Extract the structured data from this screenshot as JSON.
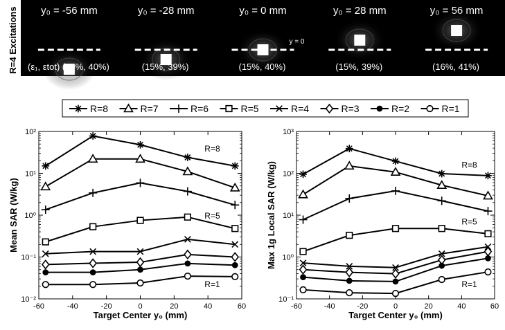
{
  "excitations": {
    "row_label": "R=4 Excitations",
    "y0_eq_label": "y = 0",
    "panels": [
      {
        "y0": -56,
        "title": "y₀ = -56 mm",
        "error_text": "(ε₁, εtot) (16%, 40%)"
      },
      {
        "y0": -28,
        "title": "y₀ = -28 mm",
        "error_text": "(15%, 39%)"
      },
      {
        "y0": 0,
        "title": "y₀ = 0 mm",
        "error_text": "(15%, 40%)"
      },
      {
        "y0": 28,
        "title": "y₀ = 28 mm",
        "error_text": "(15%, 39%)"
      },
      {
        "y0": 56,
        "title": "y₀ = 56 mm",
        "error_text": "(16%, 41%)"
      }
    ]
  },
  "legend": {
    "placement": "top",
    "entries": [
      {
        "name": "R=8",
        "marker": "star"
      },
      {
        "name": "R=7",
        "marker": "triangle"
      },
      {
        "name": "R=6",
        "marker": "plus"
      },
      {
        "name": "R=5",
        "marker": "square"
      },
      {
        "name": "R=4",
        "marker": "x"
      },
      {
        "name": "R=3",
        "marker": "diamond"
      },
      {
        "name": "R=2",
        "marker": "filled-circle"
      },
      {
        "name": "R=1",
        "marker": "circle"
      }
    ]
  },
  "chart_data": [
    {
      "type": "line",
      "yscale": "log",
      "title": "",
      "xlabel": "Target Center y₀ (mm)",
      "ylabel": "Mean SAR (W/kg)",
      "xlim": [
        -60,
        60
      ],
      "ylim": [
        0.01,
        100
      ],
      "xticks": [
        "-60",
        "-40",
        "-20",
        "0",
        "20",
        "40",
        "60"
      ],
      "yticks": [
        "10⁻²",
        "10⁻¹",
        "10⁰",
        "10¹",
        "10²"
      ],
      "grid": false,
      "x": [
        -56,
        -28,
        0,
        28,
        56
      ],
      "series": [
        {
          "name": "R=8",
          "values": [
            15,
            78,
            48,
            24,
            15
          ]
        },
        {
          "name": "R=7",
          "values": [
            4.8,
            22,
            22,
            11,
            4.5
          ]
        },
        {
          "name": "R=6",
          "values": [
            1.35,
            3.4,
            5.9,
            3.7,
            1.75
          ]
        },
        {
          "name": "R=5",
          "values": [
            0.23,
            0.53,
            0.75,
            0.9,
            0.48
          ]
        },
        {
          "name": "R=4",
          "values": [
            0.12,
            0.135,
            0.135,
            0.265,
            0.2
          ]
        },
        {
          "name": "R=3",
          "values": [
            0.066,
            0.071,
            0.075,
            0.115,
            0.1
          ]
        },
        {
          "name": "R=2",
          "values": [
            0.043,
            0.043,
            0.05,
            0.07,
            0.064
          ]
        },
        {
          "name": "R=1",
          "values": [
            0.022,
            0.022,
            0.024,
            0.035,
            0.034
          ]
        }
      ],
      "annotations": [
        {
          "text": "R=8",
          "x": 38,
          "y": 33
        },
        {
          "text": "R=5",
          "x": 38,
          "y": 0.83
        },
        {
          "text": "R=1",
          "x": 38,
          "y": 0.019
        }
      ]
    },
    {
      "type": "line",
      "yscale": "log",
      "title": "",
      "xlabel": "Target Center y₀ (mm)",
      "ylabel": "Max 1g Local SAR (W/kg)",
      "xlim": [
        -60,
        60
      ],
      "ylim": [
        0.1,
        1000
      ],
      "xticks": [
        "-60",
        "-40",
        "-20",
        "0",
        "20",
        "40",
        "60"
      ],
      "yticks": [
        "10⁻¹",
        "10⁰",
        "10¹",
        "10²",
        "10³"
      ],
      "grid": false,
      "x": [
        -56,
        -28,
        0,
        28,
        56
      ],
      "series": [
        {
          "name": "R=8",
          "values": [
            95,
            390,
            195,
            98,
            88
          ]
        },
        {
          "name": "R=7",
          "values": [
            31,
            150,
            107,
            52,
            29
          ]
        },
        {
          "name": "R=6",
          "values": [
            7.8,
            25,
            38,
            22,
            12.5
          ]
        },
        {
          "name": "R=5",
          "values": [
            1.35,
            3.3,
            4.8,
            4.8,
            3.6
          ]
        },
        {
          "name": "R=4",
          "values": [
            0.72,
            0.6,
            0.56,
            1.2,
            1.75
          ]
        },
        {
          "name": "R=3",
          "values": [
            0.5,
            0.43,
            0.4,
            0.85,
            1.35
          ]
        },
        {
          "name": "R=2",
          "values": [
            0.33,
            0.27,
            0.26,
            0.62,
            0.93
          ]
        },
        {
          "name": "R=1",
          "values": [
            0.165,
            0.14,
            0.135,
            0.29,
            0.44
          ]
        }
      ],
      "annotations": [
        {
          "text": "R=8",
          "x": 40,
          "y": 135
        },
        {
          "text": "R=5",
          "x": 40,
          "y": 6.0
        },
        {
          "text": "R=1",
          "x": 40,
          "y": 0.19
        }
      ]
    }
  ]
}
